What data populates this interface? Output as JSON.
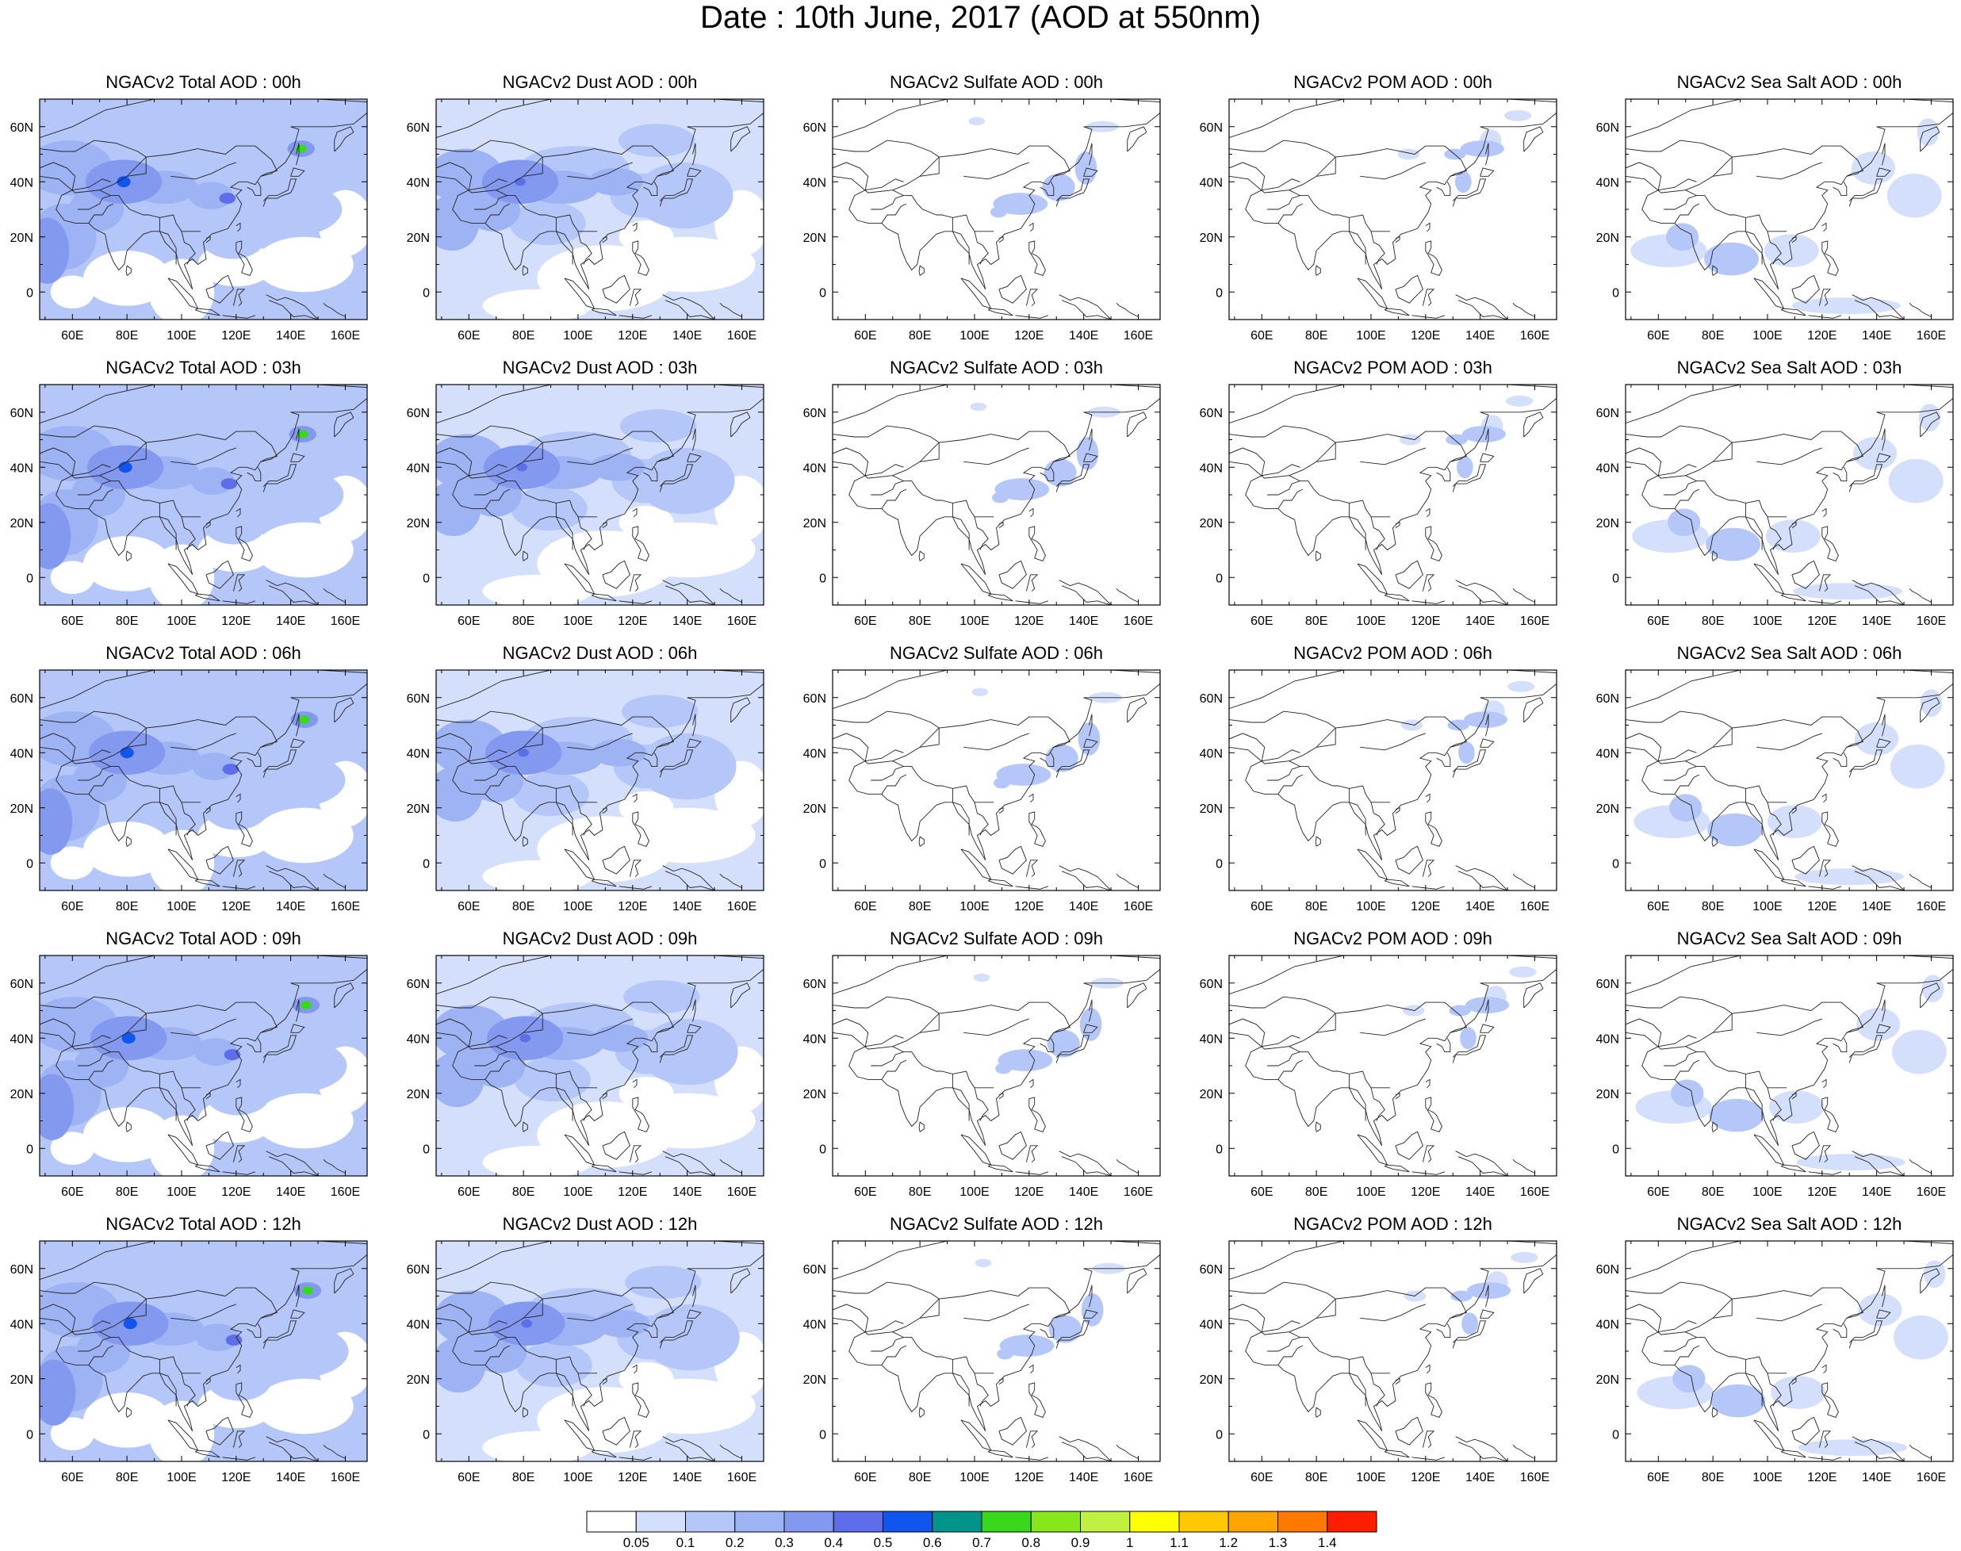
{
  "title": "Date : 10th June, 2017 (AOD at 550nm)",
  "lon_ticks": [
    "60E",
    "80E",
    "100E",
    "120E",
    "140E",
    "160E"
  ],
  "lat_ticks": [
    "60N",
    "40N",
    "20N",
    "0"
  ],
  "panels": [
    [
      "NGACv2 Total AOD : 00h",
      "NGACv2 Dust AOD : 00h",
      "NGACv2 Sulfate AOD : 00h",
      "NGACv2 POM AOD : 00h",
      "NGACv2 Sea Salt AOD : 00h"
    ],
    [
      "NGACv2 Total AOD : 03h",
      "NGACv2 Dust AOD : 03h",
      "NGACv2 Sulfate AOD : 03h",
      "NGACv2 POM AOD : 03h",
      "NGACv2 Sea Salt AOD : 03h"
    ],
    [
      "NGACv2 Total AOD : 06h",
      "NGACv2 Dust AOD : 06h",
      "NGACv2 Sulfate AOD : 06h",
      "NGACv2 POM AOD : 06h",
      "NGACv2 Sea Salt AOD : 06h"
    ],
    [
      "NGACv2 Total AOD : 09h",
      "NGACv2 Dust AOD : 09h",
      "NGACv2 Sulfate AOD : 09h",
      "NGACv2 POM AOD : 09h",
      "NGACv2 Sea Salt  AOD : 09h"
    ],
    [
      "NGACv2 Total AOD  : 12h",
      "NGACv2 Dust AOD : 12h",
      "NGACv2 Sulfate AOD : 12h",
      "NGACv2 POM  AOD : 12h",
      "NGACv2 Sea Salt  AOD : 12h"
    ]
  ],
  "colorbar": {
    "labels": [
      "0.05",
      "0.1",
      "0.2",
      "0.3",
      "0.4",
      "0.5",
      "0.6",
      "0.7",
      "0.8",
      "0.9",
      "1",
      "1.1",
      "1.2",
      "1.3",
      "1.4"
    ],
    "colors": [
      "#ffffff",
      "#d4dffc",
      "#b4c7f8",
      "#9db3f4",
      "#8399ef",
      "#5e6ee8",
      "#0f55ee",
      "#00948a",
      "#38d81c",
      "#86e81a",
      "#c0f040",
      "#ffff00",
      "#ffc800",
      "#ffa500",
      "#ff7800",
      "#ff1e00"
    ]
  }
}
